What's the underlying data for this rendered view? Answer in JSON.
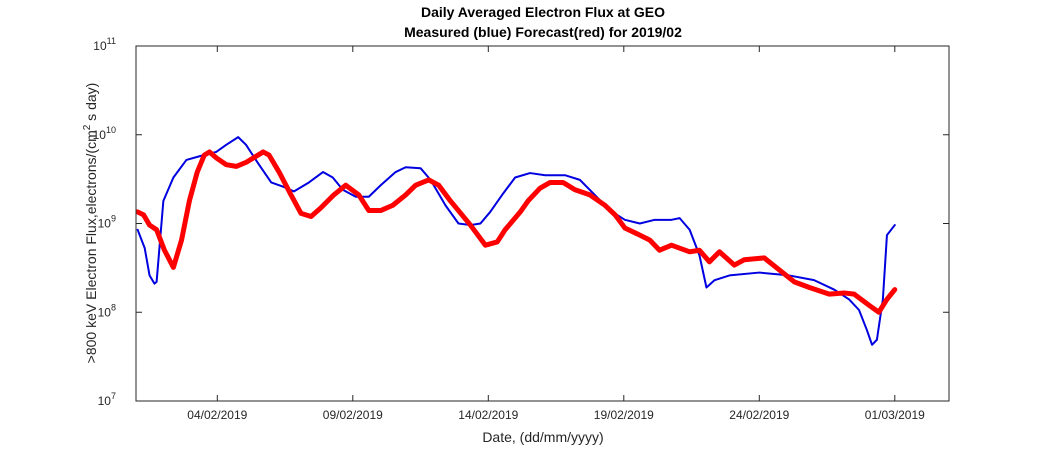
{
  "chart_data": {
    "type": "line",
    "title": "Daily Averaged Electron Flux at GEO",
    "subtitle": "Measured (blue) Forecast(red) for 2019/02",
    "xlabel": "Date, (dd/mm/yyyy)",
    "ylabel": [
      ">800 keV Electron Flux,electrons/(cm",
      "2",
      " s day)"
    ],
    "log_y": true,
    "grid": false,
    "xlim": [
      0,
      30
    ],
    "xticks": [
      {
        "value": 3,
        "label": "04/02/2019"
      },
      {
        "value": 8,
        "label": "09/02/2019"
      },
      {
        "value": 13,
        "label": "14/02/2019"
      },
      {
        "value": 18,
        "label": "19/02/2019"
      },
      {
        "value": 23,
        "label": "24/02/2019"
      },
      {
        "value": 28,
        "label": "01/03/2019"
      }
    ],
    "ylim": [
      10000000,
      100000000000
    ],
    "yticks": [
      {
        "value": 10000000,
        "label": "10",
        "exponent": "7"
      },
      {
        "value": 100000000,
        "label": "10",
        "exponent": "8"
      },
      {
        "value": 1000000000,
        "label": "10",
        "exponent": "9"
      },
      {
        "value": 10000000000,
        "label": "10",
        "exponent": "10"
      },
      {
        "value": 100000000000,
        "label": "10",
        "exponent": "11"
      }
    ],
    "series": [
      {
        "color": "#0000e0",
        "width": 2,
        "x": [
          0.06,
          0.32,
          0.5,
          0.68,
          0.76,
          1.01,
          1.38,
          1.86,
          2.41,
          2.96,
          3.33,
          3.77,
          4.06,
          4.54,
          4.99,
          5.43,
          5.83,
          6.38,
          6.9,
          7.26,
          7.63,
          8.11,
          8.59,
          9.03,
          9.58,
          9.95,
          10.5,
          10.87,
          11.42,
          11.9,
          12.34,
          12.71,
          13.07,
          13.51,
          13.99,
          14.54,
          15.1,
          15.83,
          16.38,
          16.93,
          17.49,
          18.04,
          18.59,
          19.14,
          19.76,
          20.06,
          20.43,
          20.79,
          21.05,
          21.35,
          21.9,
          23.0,
          24.1,
          25.02,
          25.76,
          26.31,
          26.68,
          26.97,
          27.16,
          27.34,
          27.56,
          27.71,
          28.0
        ],
        "values": [
          850000000,
          530000000,
          260000000,
          210000000,
          220000000,
          1800000000,
          3300000000,
          5200000000,
          5800000000,
          6400000000,
          7700000000,
          9400000000,
          7700000000,
          4600000000,
          2900000000,
          2600000000,
          2300000000,
          2900000000,
          3800000000,
          3300000000,
          2400000000,
          2000000000,
          2000000000,
          2700000000,
          3800000000,
          4300000000,
          4200000000,
          3100000000,
          1600000000,
          1000000000,
          960000000,
          1000000000,
          1350000000,
          2100000000,
          3300000000,
          3700000000,
          3500000000,
          3500000000,
          3100000000,
          2100000000,
          1400000000,
          1100000000,
          1000000000,
          1100000000,
          1100000000,
          1150000000,
          850000000,
          440000000,
          190000000,
          230000000,
          260000000,
          280000000,
          260000000,
          230000000,
          180000000,
          140000000,
          106000000,
          63000000,
          43000000,
          49000000,
          140000000,
          740000000,
          960000000
        ]
      },
      {
        "color": "#ff0000",
        "width": 5,
        "x": [
          0.06,
          0.28,
          0.5,
          0.76,
          1.05,
          1.38,
          1.68,
          1.97,
          2.26,
          2.52,
          2.71,
          2.96,
          3.33,
          3.7,
          4.07,
          4.69,
          4.91,
          5.28,
          5.72,
          6.09,
          6.46,
          6.82,
          7.3,
          7.74,
          8.22,
          8.59,
          9.03,
          9.47,
          9.95,
          10.32,
          10.8,
          11.17,
          11.6,
          12.34,
          12.89,
          13.33,
          13.62,
          14.18,
          14.47,
          14.91,
          15.28,
          15.76,
          16.2,
          16.75,
          17.31,
          17.68,
          18.04,
          18.59,
          18.96,
          19.32,
          19.76,
          20.43,
          20.79,
          21.16,
          21.53,
          22.08,
          22.44,
          23.18,
          23.74,
          24.29,
          24.85,
          25.58,
          26.13,
          26.5,
          27.05,
          27.41,
          27.71,
          28.0
        ],
        "values": [
          1350000000,
          1250000000,
          960000000,
          850000000,
          500000000,
          320000000,
          650000000,
          1800000000,
          3800000000,
          5900000000,
          6400000000,
          5500000000,
          4600000000,
          4400000000,
          4900000000,
          6400000000,
          5900000000,
          3800000000,
          2100000000,
          1300000000,
          1200000000,
          1500000000,
          2100000000,
          2700000000,
          2100000000,
          1400000000,
          1400000000,
          1600000000,
          2100000000,
          2700000000,
          3100000000,
          2700000000,
          1800000000,
          960000000,
          570000000,
          620000000,
          850000000,
          1350000000,
          1800000000,
          2500000000,
          2900000000,
          2900000000,
          2400000000,
          2100000000,
          1600000000,
          1250000000,
          890000000,
          740000000,
          650000000,
          500000000,
          570000000,
          480000000,
          500000000,
          370000000,
          480000000,
          340000000,
          390000000,
          410000000,
          300000000,
          220000000,
          190000000,
          160000000,
          165000000,
          160000000,
          120000000,
          100000000,
          140000000,
          180000000
        ]
      }
    ]
  }
}
